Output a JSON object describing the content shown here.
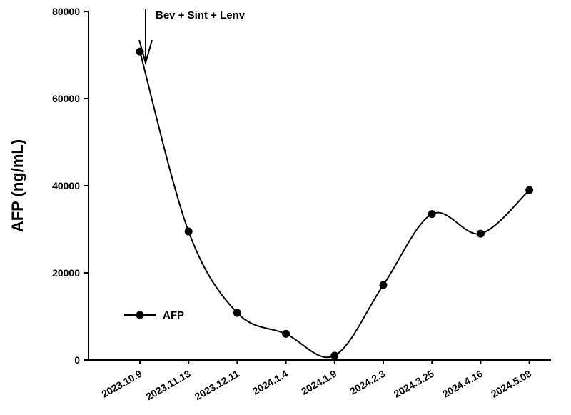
{
  "chart_data": {
    "type": "line",
    "title": "",
    "xlabel": "",
    "ylabel": "AFP (ng/mL)",
    "ylim": [
      0,
      80000
    ],
    "yticks": [
      0,
      20000,
      40000,
      60000,
      80000
    ],
    "categories": [
      "2023.10.9",
      "2023.11.13",
      "2023.12.11",
      "2024.1.4",
      "2024.1.9",
      "2024.2.3",
      "2024.3.25",
      "2024.4.16",
      "2024.5.08"
    ],
    "series": [
      {
        "name": "AFP",
        "values": [
          70800,
          29500,
          10800,
          6000,
          1000,
          17200,
          33500,
          29000,
          39000
        ]
      }
    ],
    "annotations": [
      {
        "text": "Bev + Sint + Lenv",
        "category": "2023.10.9",
        "type": "arrow-down"
      }
    ],
    "legend": {
      "position": "bottom-left",
      "entries": [
        "AFP"
      ]
    },
    "grid": false,
    "colors": {
      "line": "#000000",
      "marker": "#000000"
    }
  }
}
